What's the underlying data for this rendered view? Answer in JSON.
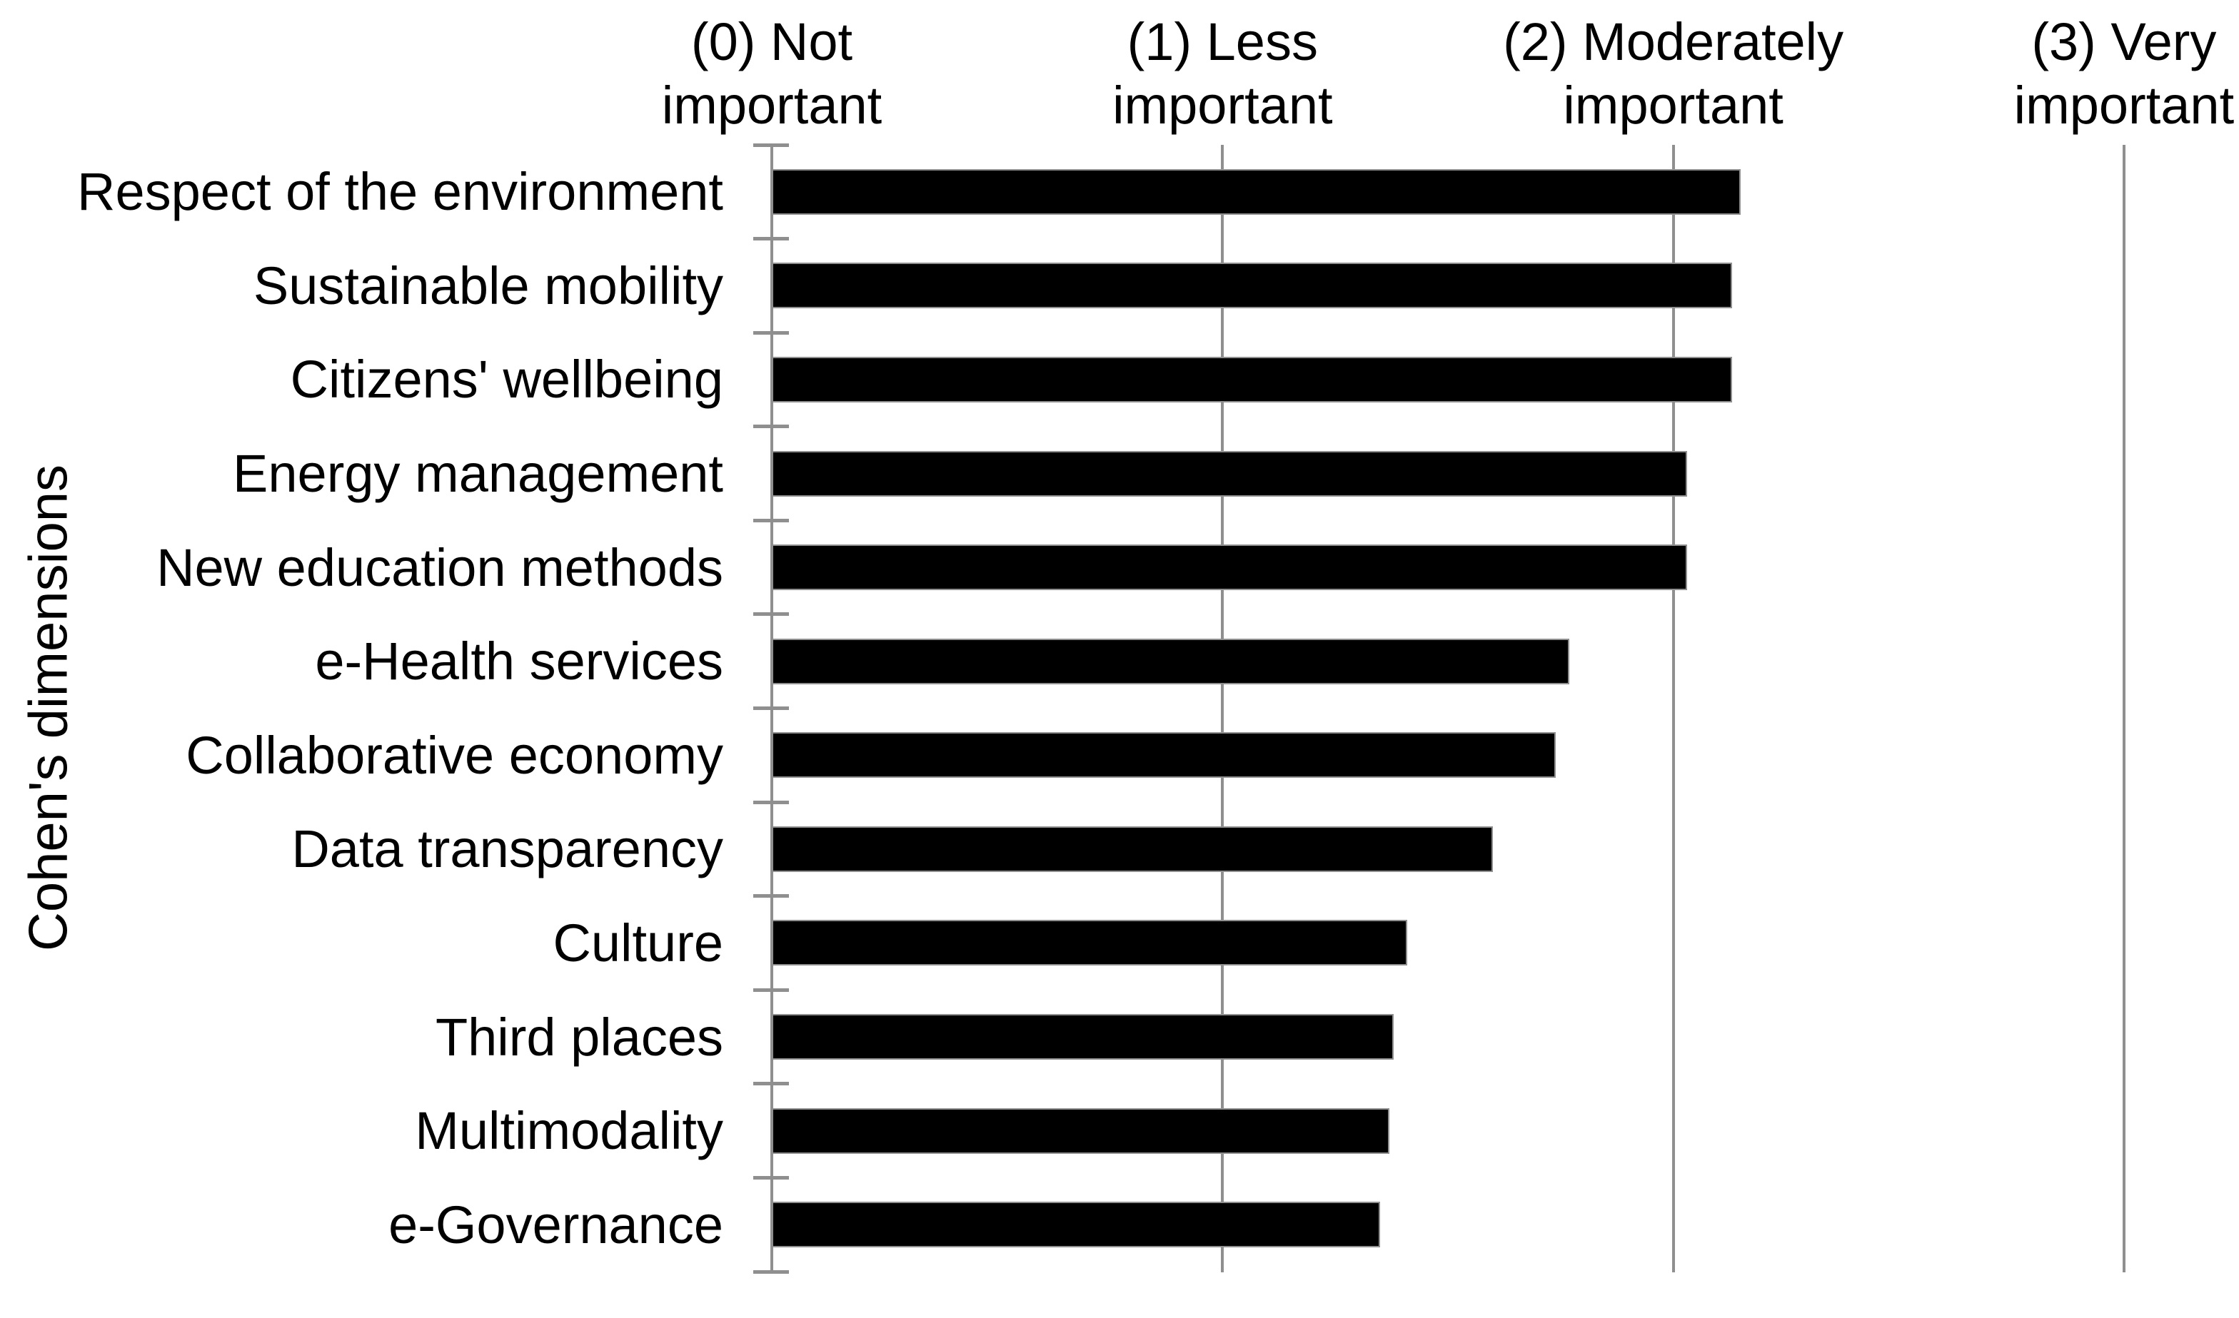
{
  "figure": {
    "background_color": "#ffffff",
    "text_color": "#000000"
  },
  "chart_data": {
    "type": "bar",
    "orientation": "horizontal",
    "title": "",
    "xlabel": "",
    "ylabel": "Cohen's dimensions",
    "xlim": [
      0,
      3
    ],
    "grid": "vertical-gridlines-at-ticks",
    "legend": "none",
    "bar_color": "#000000",
    "axis_color": "#8f8f8f",
    "categories": [
      "Respect of the environment",
      "Sustainable mobility",
      "Citizens' wellbeing",
      "Energy management",
      "New education methods",
      "e-Health services",
      "Collaborative economy",
      "Data transparency",
      "Culture",
      "Third places",
      "Multimodality",
      "e-Governance"
    ],
    "values": [
      2.15,
      2.13,
      2.13,
      2.03,
      2.03,
      1.77,
      1.74,
      1.6,
      1.41,
      1.38,
      1.37,
      1.35
    ],
    "x_ticks": [
      {
        "value": 0,
        "line1": "(0) Not",
        "line2": "important"
      },
      {
        "value": 1,
        "line1": "(1) Less",
        "line2": "important"
      },
      {
        "value": 2,
        "line1": "(2) Moderately",
        "line2": "important"
      },
      {
        "value": 3,
        "line1": "(3) Very",
        "line2": "important"
      }
    ]
  }
}
